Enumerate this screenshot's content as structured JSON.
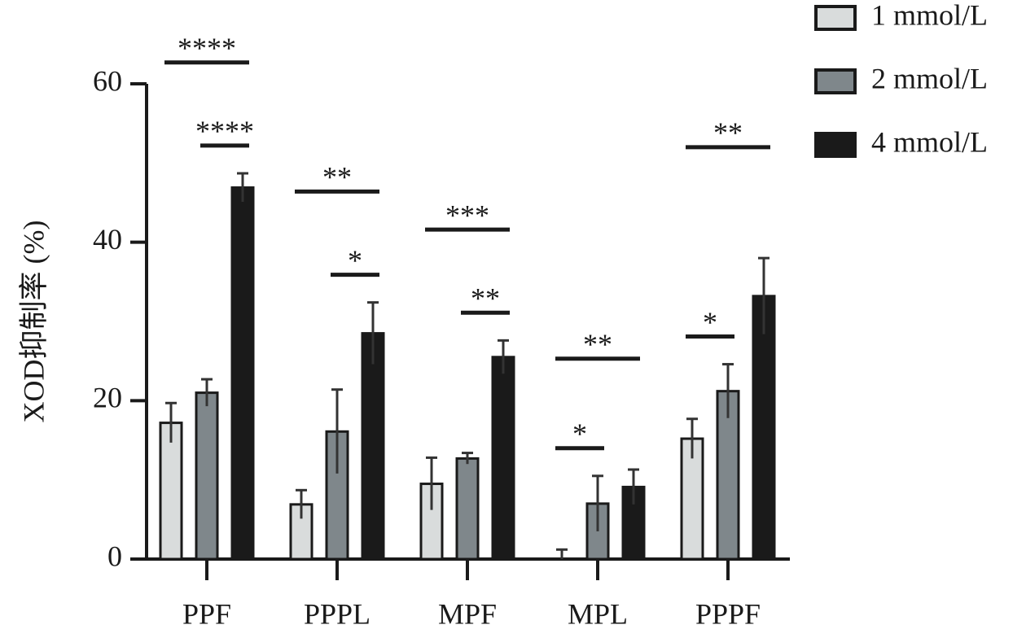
{
  "chart_data": {
    "type": "bar",
    "y_label": "XOD抑制率 (%)",
    "categories": [
      "PPF",
      "PPPL",
      "MPF",
      "MPL",
      "PPPF"
    ],
    "series": [
      {
        "name": "1 mmol/L",
        "color": "#d9dcdc",
        "values": [
          17.2,
          6.9,
          9.5,
          0,
          15.2
        ],
        "errors": [
          2.5,
          1.8,
          3.3,
          1.2,
          2.5
        ]
      },
      {
        "name": "2 mmol/L",
        "color": "#7f878b",
        "values": [
          21.0,
          16.1,
          12.7,
          7.0,
          21.2
        ],
        "errors": [
          1.7,
          5.3,
          0.7,
          3.5,
          3.4
        ]
      },
      {
        "name": "4 mmol/L",
        "color": "#1a1a1a",
        "values": [
          46.9,
          28.5,
          25.5,
          9.1,
          33.2
        ],
        "errors": [
          1.8,
          3.9,
          2.1,
          2.2,
          4.8
        ]
      }
    ],
    "annotations": [
      {
        "text": "****",
        "category": 0,
        "from": 0,
        "to": 2
      },
      {
        "text": "****",
        "category": 0,
        "from": 1,
        "to": 2
      },
      {
        "text": "**",
        "category": 1,
        "from": 0,
        "to": 2
      },
      {
        "text": "*",
        "category": 1,
        "from": 1,
        "to": 2
      },
      {
        "text": "***",
        "category": 2,
        "from": 0,
        "to": 2
      },
      {
        "text": "**",
        "category": 2,
        "from": 1,
        "to": 2
      },
      {
        "text": "**",
        "category": 3,
        "from": 0,
        "to": 2
      },
      {
        "text": "*",
        "category": 3,
        "from": 0,
        "to": 1
      },
      {
        "text": "**",
        "category": 4,
        "from": 0,
        "to": 2
      },
      {
        "text": "*",
        "category": 4,
        "from": 0,
        "to": 1
      }
    ],
    "ylim": [
      0,
      60
    ],
    "yticks": [
      0,
      20,
      40,
      60
    ]
  }
}
